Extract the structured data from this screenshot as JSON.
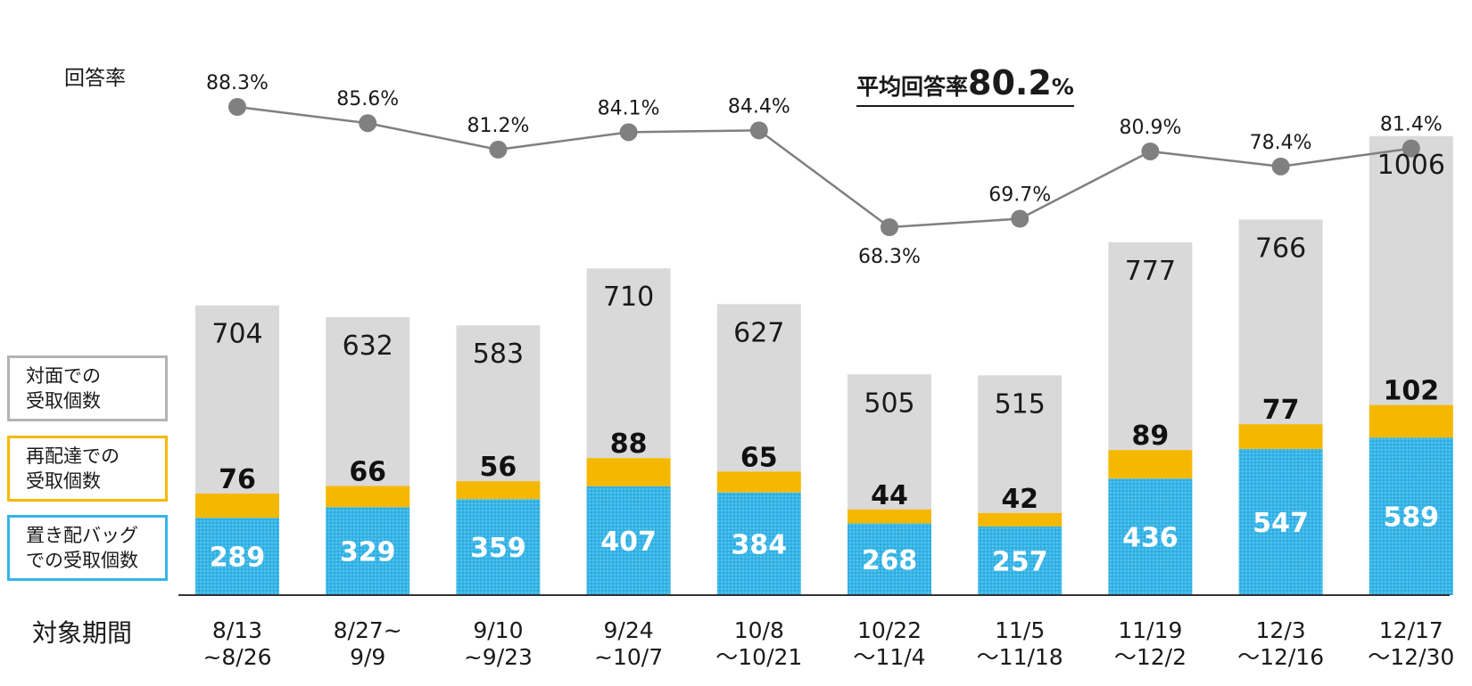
{
  "chart_data": {
    "type": "bar",
    "stacked": true,
    "categories": [
      [
        "8/13",
        "~8/26"
      ],
      [
        "8/27~",
        "9/9"
      ],
      [
        "9/10",
        "~9/23"
      ],
      [
        "9/24",
        "~10/7"
      ],
      [
        "10/8",
        "～10/21"
      ],
      [
        "10/22",
        "～11/4"
      ],
      [
        "11/5",
        "～11/18"
      ],
      [
        "11/19",
        "～12/2"
      ],
      [
        "12/3",
        "～12/16"
      ],
      [
        "12/17",
        "～12/30"
      ]
    ],
    "series": [
      {
        "name": [
          "置き配バッグ",
          "での受取個数"
        ],
        "color": "#35b5e8",
        "values": [
          289,
          329,
          359,
          407,
          384,
          268,
          257,
          436,
          547,
          589
        ]
      },
      {
        "name": [
          "再配達での",
          "受取個数"
        ],
        "color": "#f5b800",
        "values": [
          76,
          66,
          56,
          88,
          65,
          44,
          42,
          89,
          77,
          102
        ]
      },
      {
        "name": [
          "対面での",
          "受取個数"
        ],
        "color": "#d9d9d9",
        "values": [
          704,
          632,
          583,
          710,
          627,
          505,
          515,
          777,
          766,
          1006
        ]
      }
    ],
    "line_series": {
      "name": "回答率",
      "color": "#808080",
      "values": [
        88.3,
        85.6,
        81.2,
        84.1,
        84.4,
        68.3,
        69.7,
        80.9,
        78.4,
        81.4
      ],
      "labels": [
        "88.3%",
        "85.6%",
        "81.2%",
        "84.1%",
        "84.4%",
        "68.3%",
        "69.7%",
        "80.9%",
        "78.4%",
        "81.4%"
      ]
    },
    "xlabel": "対象期間",
    "annotation": {
      "prefix": "平均回答率",
      "value": "80.2",
      "unit": "%"
    }
  }
}
